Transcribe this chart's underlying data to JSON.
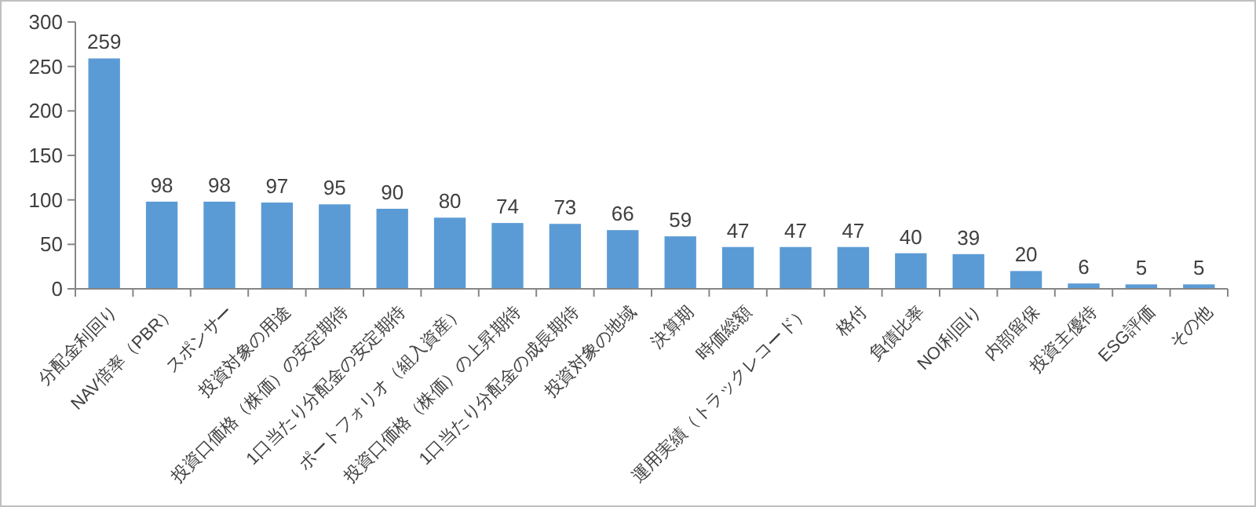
{
  "chart_data": {
    "type": "bar",
    "categories": [
      "分配金利回り",
      "NAV倍率（PBR）",
      "スポンサー",
      "投資対象の用途",
      "投資口価格（株価）の安定期待",
      "1口当たり分配金の安定期待",
      "ポートフォリオ（組入資産）",
      "投資口価格（株価）の上昇期待",
      "1口当たり分配金の成長期待",
      "投資対象の地域",
      "決算期",
      "時価総額",
      "運用実績（トラックレコード）",
      "格付",
      "負債比率",
      "NOI利回り",
      "内部留保",
      "投資主優待",
      "ESG評価",
      "その他"
    ],
    "values": [
      259,
      98,
      98,
      97,
      95,
      90,
      80,
      74,
      73,
      66,
      59,
      47,
      47,
      47,
      40,
      39,
      20,
      6,
      5,
      5
    ],
    "color": "#5b9bd5",
    "ylim": [
      0,
      300
    ],
    "yticks": [
      0,
      50,
      100,
      150,
      200,
      250,
      300
    ],
    "data_labels": true
  }
}
